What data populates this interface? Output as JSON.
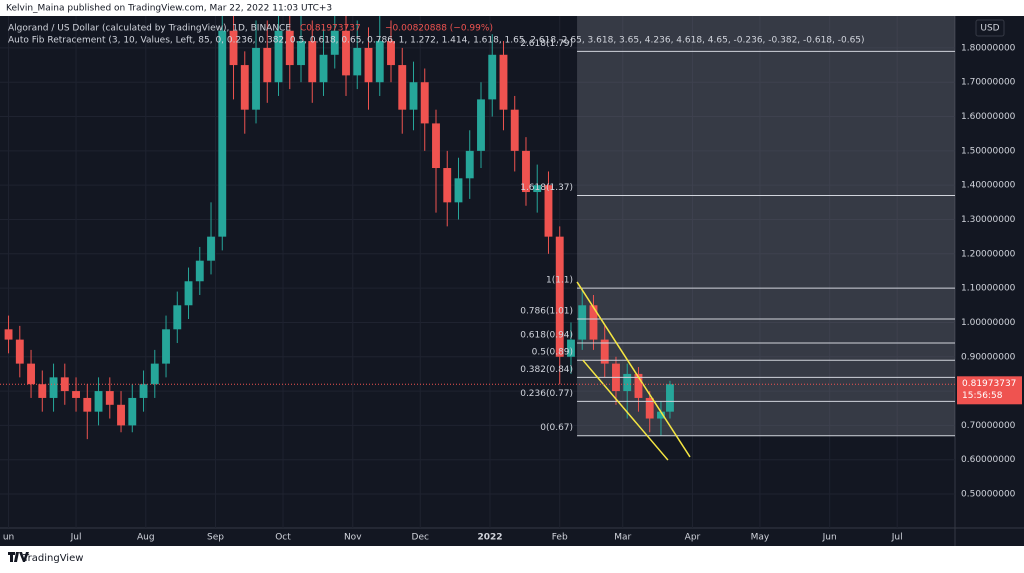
{
  "header": {
    "publisher": "Kelvin_Maina published on TradingView.com, Mar 22, 2022 11:03 UTC+3",
    "brand": "TradingView"
  },
  "chart_data": {
    "type": "candlestick",
    "title": "Algorand / US Dollar (calculated by TradingView), 1D, BINANCE",
    "last_price_text": "C0.81973737",
    "change_text": "−0.00820888 (−0.99%)",
    "indicator": "Auto Fib Retracement (3, 10, Values, Left, 85, 0, 0.236, 0.382, 0.5, 0.618, 0.65, 0.786, 1, 1.272, 1.414, 1.618, 1.65, 2.618, 2.65, 3.618, 3.65, 4.236, 4.618, 4.65, -0.236, -0.382, -0.618, -0.65)",
    "currency": "USD",
    "up_color": "#26a69a",
    "down_color": "#ef5350",
    "x": [
      0,
      5,
      10,
      15,
      20,
      25,
      30,
      35,
      40,
      45,
      50,
      55,
      60,
      65,
      70,
      75,
      80,
      85,
      90,
      95,
      100,
      105,
      110,
      115,
      120,
      125,
      130,
      135,
      140,
      145,
      150,
      155,
      160,
      165,
      170,
      175,
      180,
      185,
      190,
      195,
      200,
      205,
      210,
      215,
      220,
      225,
      230,
      235,
      240,
      245,
      250,
      255,
      260,
      265,
      270,
      275,
      280,
      285,
      290,
      294
    ],
    "open": [
      0.98,
      0.95,
      0.88,
      0.82,
      0.78,
      0.84,
      0.8,
      0.78,
      0.74,
      0.8,
      0.76,
      0.7,
      0.78,
      0.82,
      0.88,
      0.98,
      1.05,
      1.12,
      1.18,
      1.25,
      1.85,
      1.75,
      1.62,
      1.8,
      1.7,
      1.85,
      1.75,
      1.82,
      1.7,
      1.78,
      1.85,
      1.72,
      1.8,
      1.7,
      1.82,
      1.75,
      1.62,
      1.7,
      1.58,
      1.45,
      1.35,
      1.42,
      1.5,
      1.65,
      1.78,
      1.62,
      1.5,
      1.38,
      1.4,
      1.25,
      0.9,
      0.95,
      1.05,
      0.95,
      0.88,
      0.8,
      0.85,
      0.78,
      0.72,
      0.74
    ],
    "high": [
      1.02,
      0.99,
      0.92,
      0.86,
      0.88,
      0.88,
      0.84,
      0.82,
      0.84,
      0.84,
      0.8,
      0.82,
      0.86,
      0.92,
      1.02,
      1.09,
      1.16,
      1.22,
      1.35,
      2.38,
      1.95,
      1.79,
      1.88,
      1.88,
      1.92,
      1.92,
      1.9,
      1.88,
      1.86,
      1.92,
      1.9,
      1.88,
      1.86,
      1.9,
      1.88,
      1.8,
      1.76,
      1.74,
      1.62,
      1.5,
      1.48,
      1.56,
      1.7,
      1.84,
      1.82,
      1.66,
      1.54,
      1.46,
      1.44,
      1.28,
      1.0,
      1.1,
      1.08,
      0.99,
      0.9,
      0.88,
      0.87,
      0.8,
      0.77,
      0.83
    ],
    "low": [
      0.91,
      0.84,
      0.78,
      0.74,
      0.74,
      0.76,
      0.74,
      0.66,
      0.7,
      0.72,
      0.68,
      0.68,
      0.74,
      0.78,
      0.84,
      0.94,
      1.01,
      1.08,
      1.14,
      1.21,
      1.65,
      1.55,
      1.58,
      1.64,
      1.66,
      1.68,
      1.7,
      1.64,
      1.66,
      1.74,
      1.66,
      1.68,
      1.62,
      1.66,
      1.7,
      1.55,
      1.56,
      1.5,
      1.32,
      1.28,
      1.3,
      1.36,
      1.45,
      1.6,
      1.56,
      1.44,
      1.34,
      1.32,
      1.2,
      0.82,
      0.85,
      0.92,
      0.92,
      0.84,
      0.76,
      0.72,
      0.74,
      0.68,
      0.67,
      0.72
    ],
    "close": [
      0.95,
      0.88,
      0.82,
      0.78,
      0.84,
      0.8,
      0.78,
      0.74,
      0.8,
      0.76,
      0.7,
      0.78,
      0.82,
      0.88,
      0.98,
      1.05,
      1.12,
      1.18,
      1.25,
      1.85,
      1.75,
      1.62,
      1.8,
      1.7,
      1.85,
      1.75,
      1.82,
      1.7,
      1.78,
      1.85,
      1.72,
      1.8,
      1.7,
      1.82,
      1.75,
      1.62,
      1.7,
      1.58,
      1.45,
      1.35,
      1.42,
      1.5,
      1.65,
      1.78,
      1.62,
      1.5,
      1.38,
      1.4,
      1.25,
      0.9,
      0.95,
      1.05,
      0.95,
      0.88,
      0.8,
      0.85,
      0.78,
      0.72,
      0.74,
      0.82
    ],
    "current_price": {
      "value": 0.81973737,
      "label": "0.81973737",
      "countdown": "15:56:58"
    },
    "xlim": [
      -3.8,
      420.7
    ],
    "ylim": [
      0.401,
      1.893
    ],
    "xticks": [
      {
        "value": 0,
        "label": "un"
      },
      {
        "value": 30,
        "label": "Jul"
      },
      {
        "value": 61,
        "label": "Aug"
      },
      {
        "value": 92,
        "label": "Sep"
      },
      {
        "value": 122,
        "label": "Oct"
      },
      {
        "value": 153,
        "label": "Nov"
      },
      {
        "value": 183,
        "label": "Dec"
      },
      {
        "value": 214,
        "label": "2022"
      },
      {
        "value": 245,
        "label": "Feb"
      },
      {
        "value": 273,
        "label": "Mar"
      },
      {
        "value": 304,
        "label": "Apr"
      },
      {
        "value": 334,
        "label": "May"
      },
      {
        "value": 365,
        "label": "Jun"
      },
      {
        "value": 395,
        "label": "Jul"
      }
    ],
    "yticks": [
      {
        "value": 0.5,
        "label": "0.50000000"
      },
      {
        "value": 0.6,
        "label": "0.60000000"
      },
      {
        "value": 0.7,
        "label": "0.70000000"
      },
      {
        "value": 0.8,
        "label": "0.80000000"
      },
      {
        "value": 0.9,
        "label": "0.90000000"
      },
      {
        "value": 1.0,
        "label": "1.00000000"
      },
      {
        "value": 1.1,
        "label": "1.10000000"
      },
      {
        "value": 1.2,
        "label": "1.20000000"
      },
      {
        "value": 1.3,
        "label": "1.30000000"
      },
      {
        "value": 1.4,
        "label": "1.40000000"
      },
      {
        "value": 1.5,
        "label": "1.50000000"
      },
      {
        "value": 1.6,
        "label": "1.60000000"
      },
      {
        "value": 1.7,
        "label": "1.70000000"
      },
      {
        "value": 1.8,
        "label": "1.80000000"
      }
    ],
    "grid": true,
    "fib_start_x": 252.7,
    "fib_levels": [
      {
        "value": 1.79,
        "label": "2.618(1.79)"
      },
      {
        "value": 1.37,
        "label": "1.618(1.37)"
      },
      {
        "value": 1.1,
        "label": "1(1.1)"
      },
      {
        "value": 1.01,
        "label": "0.786(1.01)"
      },
      {
        "value": 0.94,
        "label": "0.618(0.94)"
      },
      {
        "value": 0.89,
        "label": "0.5(0.89)"
      },
      {
        "value": 0.84,
        "label": "0.382(0.84)"
      },
      {
        "value": 0.77,
        "label": "0.236(0.77)"
      },
      {
        "value": 0.67,
        "label": "0(0.67)"
      }
    ],
    "trend_lines": [
      {
        "x": [
          252.7,
          302.9
        ],
        "y": [
          1.118,
          0.608
        ],
        "color": "#f5e642"
      },
      {
        "x": [
          255.3,
          293.1
        ],
        "y": [
          0.89,
          0.599
        ],
        "color": "#f5e642"
      }
    ]
  }
}
